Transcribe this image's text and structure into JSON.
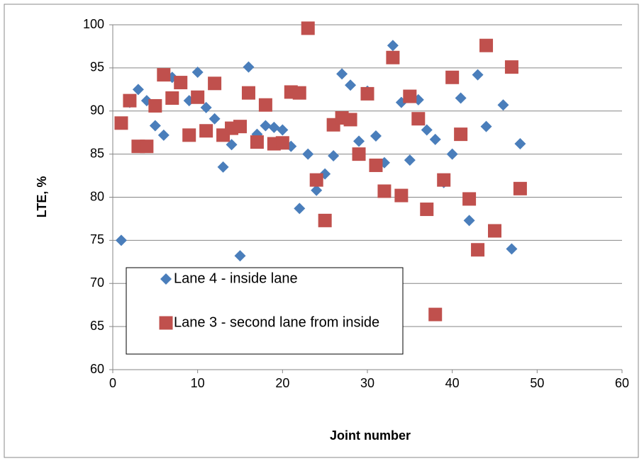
{
  "chart_data": {
    "type": "scatter",
    "x_label": "Joint number",
    "y_label": "LTE, %",
    "xlim": [
      0,
      60
    ],
    "xticks": [
      0,
      10,
      20,
      30,
      40,
      50,
      60
    ],
    "ylim": [
      60,
      100
    ],
    "yticks": [
      60,
      65,
      70,
      75,
      80,
      85,
      90,
      95,
      100
    ],
    "grid": true,
    "legend": "lower left",
    "series": [
      {
        "name": "Lane 4 - inside lane",
        "color": "#4a7ebb",
        "marker": "diamond",
        "x": [
          1,
          2,
          3,
          4,
          5,
          6,
          7,
          8,
          9,
          10,
          11,
          12,
          13,
          14,
          15,
          16,
          17,
          18,
          19,
          20,
          21,
          22,
          23,
          24,
          25,
          26,
          27,
          28,
          29,
          30,
          31,
          32,
          33,
          34,
          35,
          36,
          37,
          38,
          39,
          40,
          41,
          42,
          43,
          44,
          46,
          47,
          48
        ],
        "values": [
          75.0,
          91.0,
          92.5,
          91.2,
          88.3,
          87.2,
          93.9,
          93.2,
          91.2,
          94.5,
          90.4,
          89.1,
          83.5,
          86.1,
          73.2,
          95.1,
          87.3,
          88.3,
          88.1,
          87.8,
          85.9,
          78.7,
          85.0,
          80.8,
          82.7,
          84.8,
          94.3,
          93.0,
          86.5,
          92.3,
          87.1,
          84.0,
          97.6,
          91.0,
          84.3,
          91.3,
          87.8,
          86.7,
          81.7,
          85.0,
          91.5,
          77.3,
          94.2,
          88.2,
          90.7,
          74.0,
          86.2
        ]
      },
      {
        "name": "Lane 3 - second lane from inside",
        "color": "#c0504d",
        "marker": "square",
        "x": [
          1,
          2,
          3,
          4,
          5,
          6,
          7,
          8,
          9,
          10,
          11,
          12,
          13,
          14,
          15,
          16,
          17,
          18,
          19,
          20,
          21,
          22,
          23,
          24,
          25,
          26,
          27,
          28,
          29,
          30,
          31,
          32,
          33,
          34,
          35,
          36,
          37,
          38,
          39,
          40,
          41,
          42,
          43,
          44,
          45,
          47,
          48
        ],
        "values": [
          88.6,
          91.2,
          85.9,
          85.9,
          90.6,
          94.2,
          91.5,
          93.3,
          87.2,
          91.6,
          87.7,
          93.2,
          87.2,
          88.0,
          88.2,
          92.1,
          86.4,
          90.7,
          86.2,
          86.3,
          92.2,
          92.1,
          99.6,
          82.0,
          77.3,
          88.4,
          89.2,
          89.0,
          85.0,
          92.0,
          83.7,
          80.7,
          96.2,
          80.2,
          91.7,
          89.1,
          78.6,
          66.4,
          82.0,
          93.9,
          87.3,
          79.8,
          73.9,
          97.6,
          76.1,
          95.1,
          81.0
        ]
      }
    ]
  }
}
